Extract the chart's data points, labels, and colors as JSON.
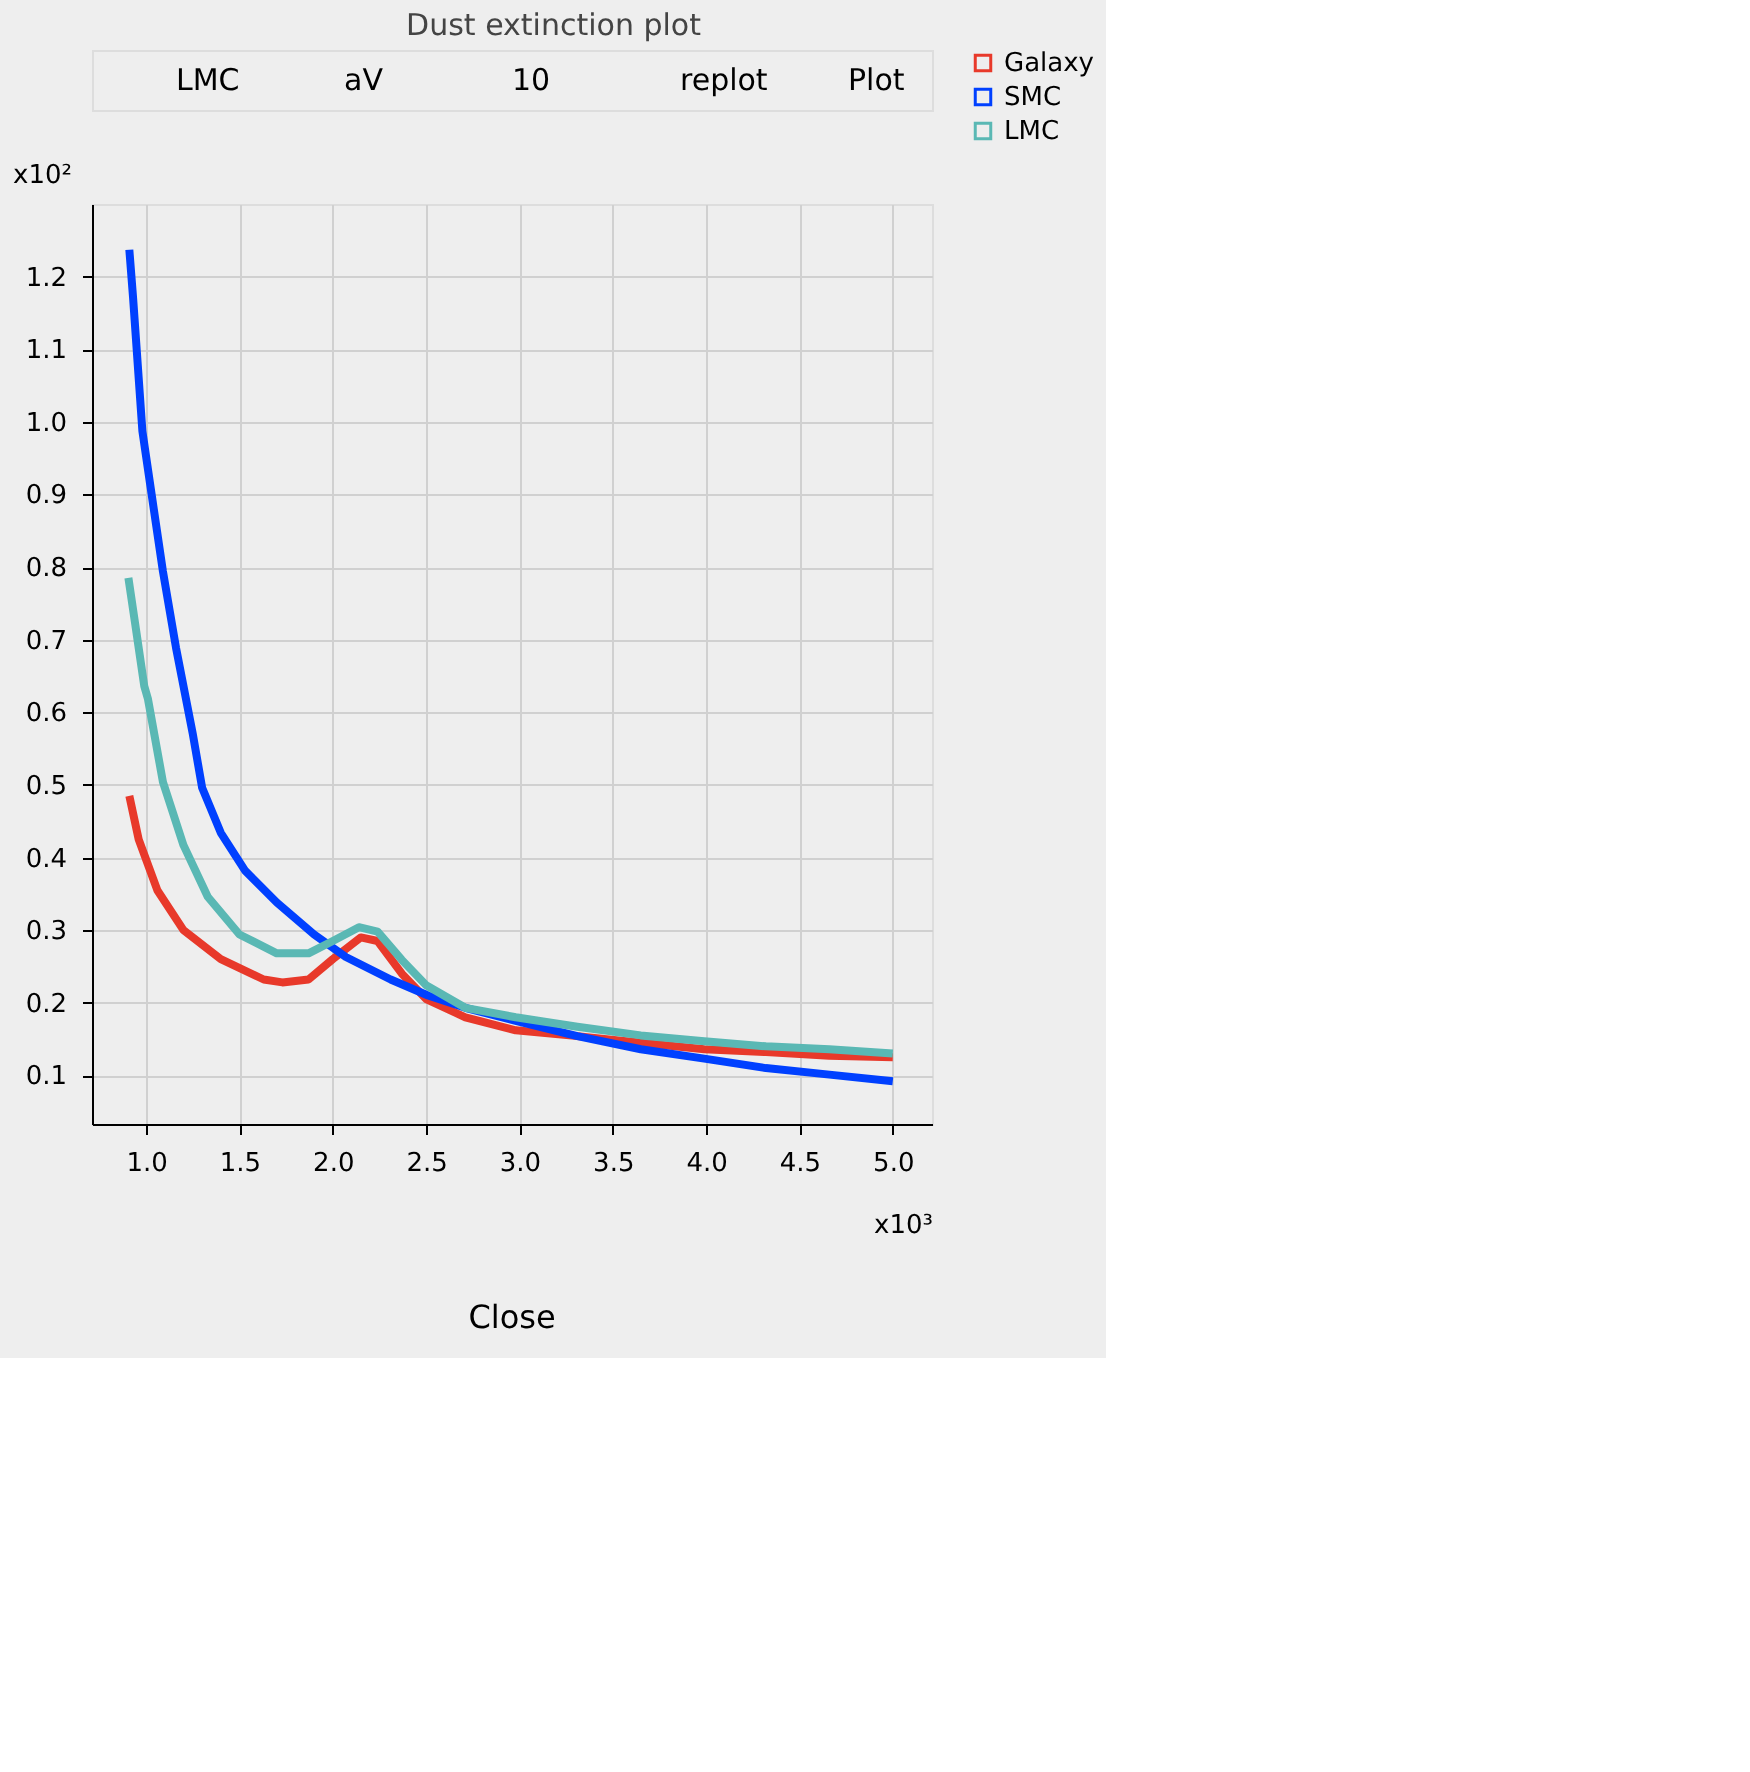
{
  "chart_data": {
    "type": "line",
    "title": "Dust extinction plot",
    "xlabel": "x10³",
    "ylabel": "x10²",
    "annotations": [
      "LMC",
      "aV",
      "10",
      "replot",
      "Plot",
      "Close"
    ],
    "xlim": [
      0.71,
      5.21
    ],
    "ylim": [
      0.033,
      1.3
    ],
    "xticks": [
      {
        "value": 1,
        "label": "1.0"
      },
      {
        "value": 1.5,
        "label": "1.5"
      },
      {
        "value": 2,
        "label": "2.0"
      },
      {
        "value": 2.5,
        "label": "2.5"
      },
      {
        "value": 3,
        "label": "3.0"
      },
      {
        "value": 3.5,
        "label": "3.5"
      },
      {
        "value": 4,
        "label": "4.0"
      },
      {
        "value": 4.5,
        "label": "4.5"
      },
      {
        "value": 5,
        "label": "5.0"
      }
    ],
    "yticks": [
      {
        "value": 0.1,
        "label": "0.1"
      },
      {
        "value": 0.2,
        "label": "0.2"
      },
      {
        "value": 0.3,
        "label": "0.3"
      },
      {
        "value": 0.4,
        "label": "0.4"
      },
      {
        "value": 0.5,
        "label": "0.5"
      },
      {
        "value": 0.6,
        "label": "0.6"
      },
      {
        "value": 0.7,
        "label": "0.7"
      },
      {
        "value": 0.8,
        "label": "0.8"
      },
      {
        "value": 0.9,
        "label": "0.9"
      },
      {
        "value": 1,
        "label": "1.0"
      },
      {
        "value": 1.1,
        "label": "1.1"
      },
      {
        "value": 1.2,
        "label": "1.2"
      }
    ],
    "grid": true,
    "legend": "top right",
    "marker": "none",
    "line_style": "solid",
    "series": [
      {
        "name": "Galaxy",
        "color": "#e8392a",
        "x": [
          0.91,
          0.96,
          1.06,
          1.2,
          1.4,
          1.63,
          1.73,
          1.87,
          2.0,
          2.15,
          2.24,
          2.37,
          2.5,
          2.71,
          2.98,
          3.31,
          3.65,
          3.99,
          4.32,
          4.66,
          5.0
        ],
        "values": [
          0.485,
          0.425,
          0.355,
          0.3,
          0.26,
          0.232,
          0.228,
          0.232,
          0.26,
          0.29,
          0.285,
          0.24,
          0.205,
          0.18,
          0.162,
          0.154,
          0.145,
          0.136,
          0.132,
          0.127,
          0.125
        ]
      },
      {
        "name": "SMC",
        "color": "#0040ff",
        "x": [
          0.91,
          0.93,
          0.98,
          1.03,
          1.09,
          1.16,
          1.25,
          1.3,
          1.4,
          1.53,
          1.7,
          1.9,
          2.07,
          2.31,
          2.51,
          2.71,
          2.98,
          3.31,
          3.65,
          3.99,
          4.32,
          4.66,
          5.0
        ],
        "values": [
          1.237,
          1.171,
          0.987,
          0.899,
          0.794,
          0.689,
          0.57,
          0.496,
          0.434,
          0.382,
          0.338,
          0.294,
          0.263,
          0.232,
          0.21,
          0.193,
          0.175,
          0.154,
          0.136,
          0.123,
          0.11,
          0.101,
          0.092
        ]
      },
      {
        "name": "LMC",
        "color": "#5ab8b4",
        "x": [
          0.905,
          0.94,
          0.99,
          1.01,
          1.09,
          1.2,
          1.33,
          1.5,
          1.7,
          1.87,
          2.0,
          2.14,
          2.24,
          2.37,
          2.5,
          2.71,
          2.98,
          3.31,
          3.65,
          3.99,
          4.32,
          4.66,
          5.0
        ],
        "values": [
          0.785,
          0.724,
          0.636,
          0.618,
          0.504,
          0.417,
          0.346,
          0.294,
          0.268,
          0.268,
          0.285,
          0.304,
          0.298,
          0.259,
          0.224,
          0.193,
          0.18,
          0.167,
          0.155,
          0.147,
          0.14,
          0.136,
          0.13
        ]
      }
    ]
  }
}
